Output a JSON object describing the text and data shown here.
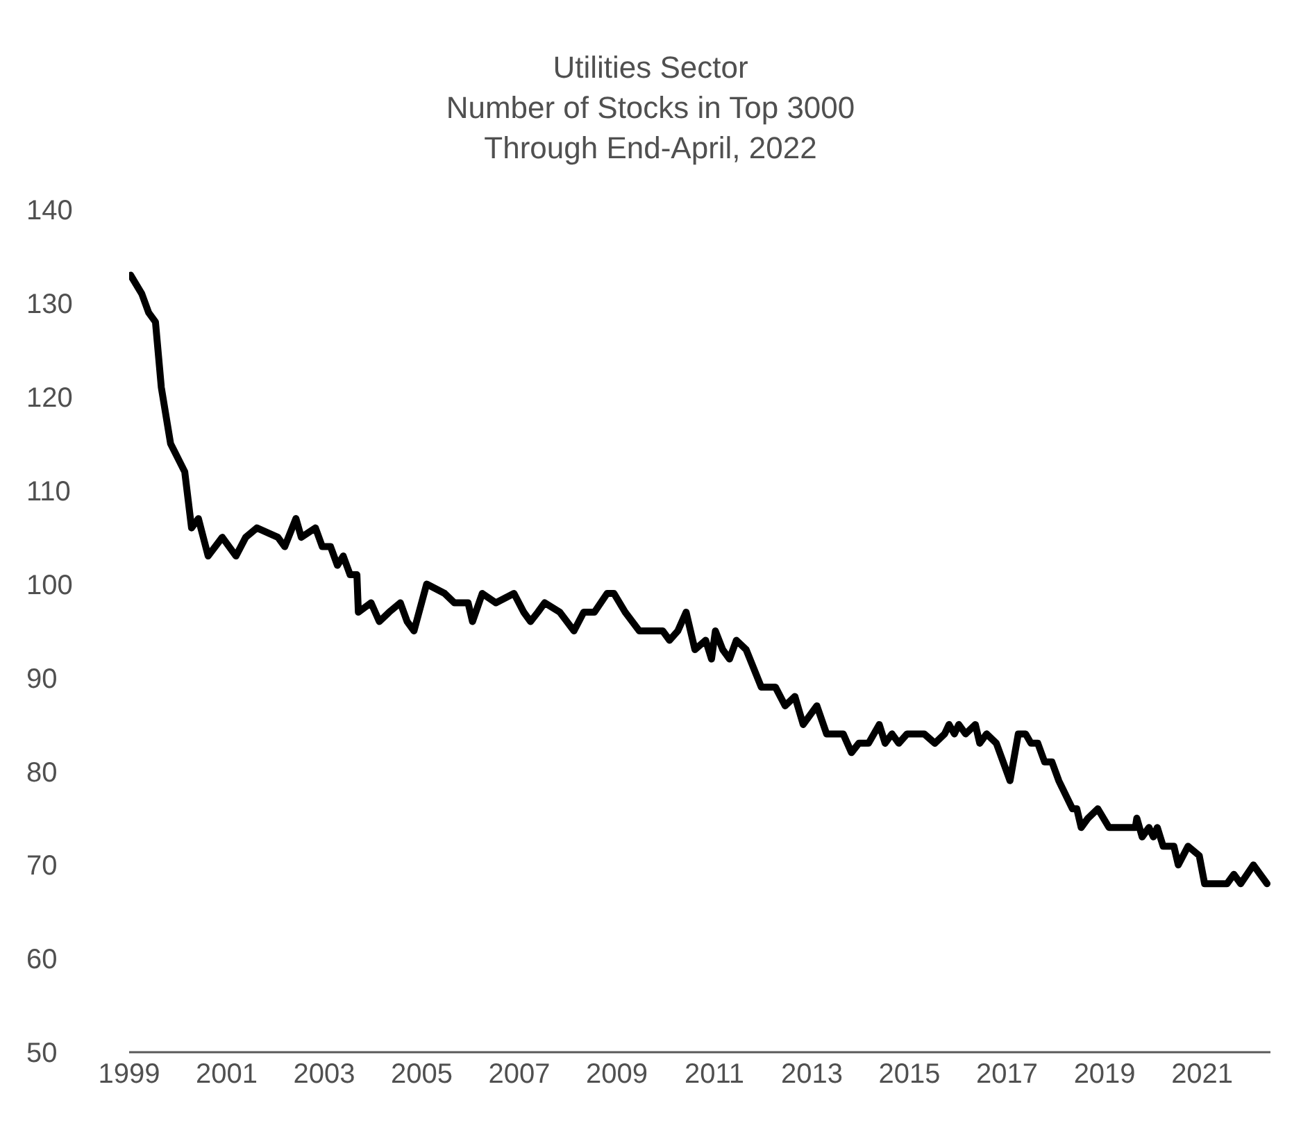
{
  "chart_data": {
    "type": "line",
    "title": "Utilities Sector\nNumber of Stocks in Top 3000\nThrough End-April, 2022",
    "x": [
      1999.03,
      1999.26,
      1999.4,
      1999.54,
      1999.66,
      1999.85,
      2000.14,
      2000.28,
      2000.42,
      2000.62,
      2000.91,
      2001.19,
      2001.39,
      2001.62,
      2002.05,
      2002.19,
      2002.42,
      2002.53,
      2002.82,
      2002.96,
      2003.13,
      2003.27,
      2003.39,
      2003.53,
      2003.67,
      2003.7,
      2003.96,
      2004.13,
      2004.33,
      2004.56,
      2004.7,
      2004.84,
      2005.1,
      2005.47,
      2005.67,
      2005.95,
      2006.04,
      2006.24,
      2006.52,
      2006.89,
      2007.09,
      2007.23,
      2007.38,
      2007.52,
      2007.83,
      2008.12,
      2008.32,
      2008.54,
      2008.8,
      2008.94,
      2009.17,
      2009.46,
      2009.94,
      2010.08,
      2010.25,
      2010.42,
      2010.6,
      2010.82,
      2010.94,
      2011.02,
      2011.17,
      2011.31,
      2011.45,
      2011.65,
      2011.96,
      2012.25,
      2012.45,
      2012.65,
      2012.82,
      2013.1,
      2013.3,
      2013.64,
      2013.81,
      2013.96,
      2014.16,
      2014.38,
      2014.5,
      2014.64,
      2014.78,
      2014.95,
      2015.3,
      2015.52,
      2015.72,
      2015.81,
      2015.92,
      2016.01,
      2016.15,
      2016.35,
      2016.44,
      2016.58,
      2016.78,
      2017.06,
      2017.23,
      2017.38,
      2017.49,
      2017.63,
      2017.77,
      2017.92,
      2018.06,
      2018.34,
      2018.43,
      2018.52,
      2018.66,
      2018.86,
      2019.09,
      2019.63,
      2019.66,
      2019.77,
      2019.91,
      2020.0,
      2020.08,
      2020.2,
      2020.42,
      2020.51,
      2020.71,
      2020.94,
      2021.05,
      2021.51,
      2021.65,
      2021.79,
      2022.05,
      2022.19,
      2022.33
    ],
    "series": [
      {
        "color": "#000000",
        "values": [
          133,
          131,
          129,
          128,
          121,
          115,
          112,
          106,
          107,
          103,
          105,
          103,
          105,
          106,
          105,
          104,
          107,
          105,
          106,
          104,
          104,
          102,
          103,
          101,
          101,
          97,
          98,
          96,
          97,
          98,
          96,
          95,
          100,
          99,
          98,
          98,
          96,
          99,
          98,
          99,
          97,
          96,
          97,
          98,
          97,
          95,
          97,
          97,
          99,
          99,
          97,
          95,
          95,
          94,
          95,
          97,
          93,
          94,
          92,
          95,
          93,
          92,
          94,
          93,
          89,
          89,
          87,
          88,
          85,
          87,
          84,
          84,
          82,
          83,
          83,
          85,
          83,
          84,
          83,
          84,
          84,
          83,
          84,
          85,
          84,
          85,
          84,
          85,
          83,
          84,
          83,
          79,
          84,
          84,
          83,
          83,
          81,
          81,
          79,
          76,
          76,
          74,
          75,
          76,
          74,
          74,
          75,
          73,
          74,
          73,
          74,
          72,
          72,
          70,
          72,
          71,
          68,
          68,
          69,
          68,
          70,
          69,
          68
        ]
      }
    ],
    "xlim": [
      1999,
      2022.4
    ],
    "xticks": [
      1999,
      2001,
      2003,
      2005,
      2007,
      2009,
      2011,
      2013,
      2015,
      2017,
      2019,
      2021
    ],
    "ylim": [
      50,
      140
    ],
    "yticks": [
      50,
      60,
      70,
      80,
      90,
      100,
      110,
      120,
      130,
      140
    ]
  }
}
